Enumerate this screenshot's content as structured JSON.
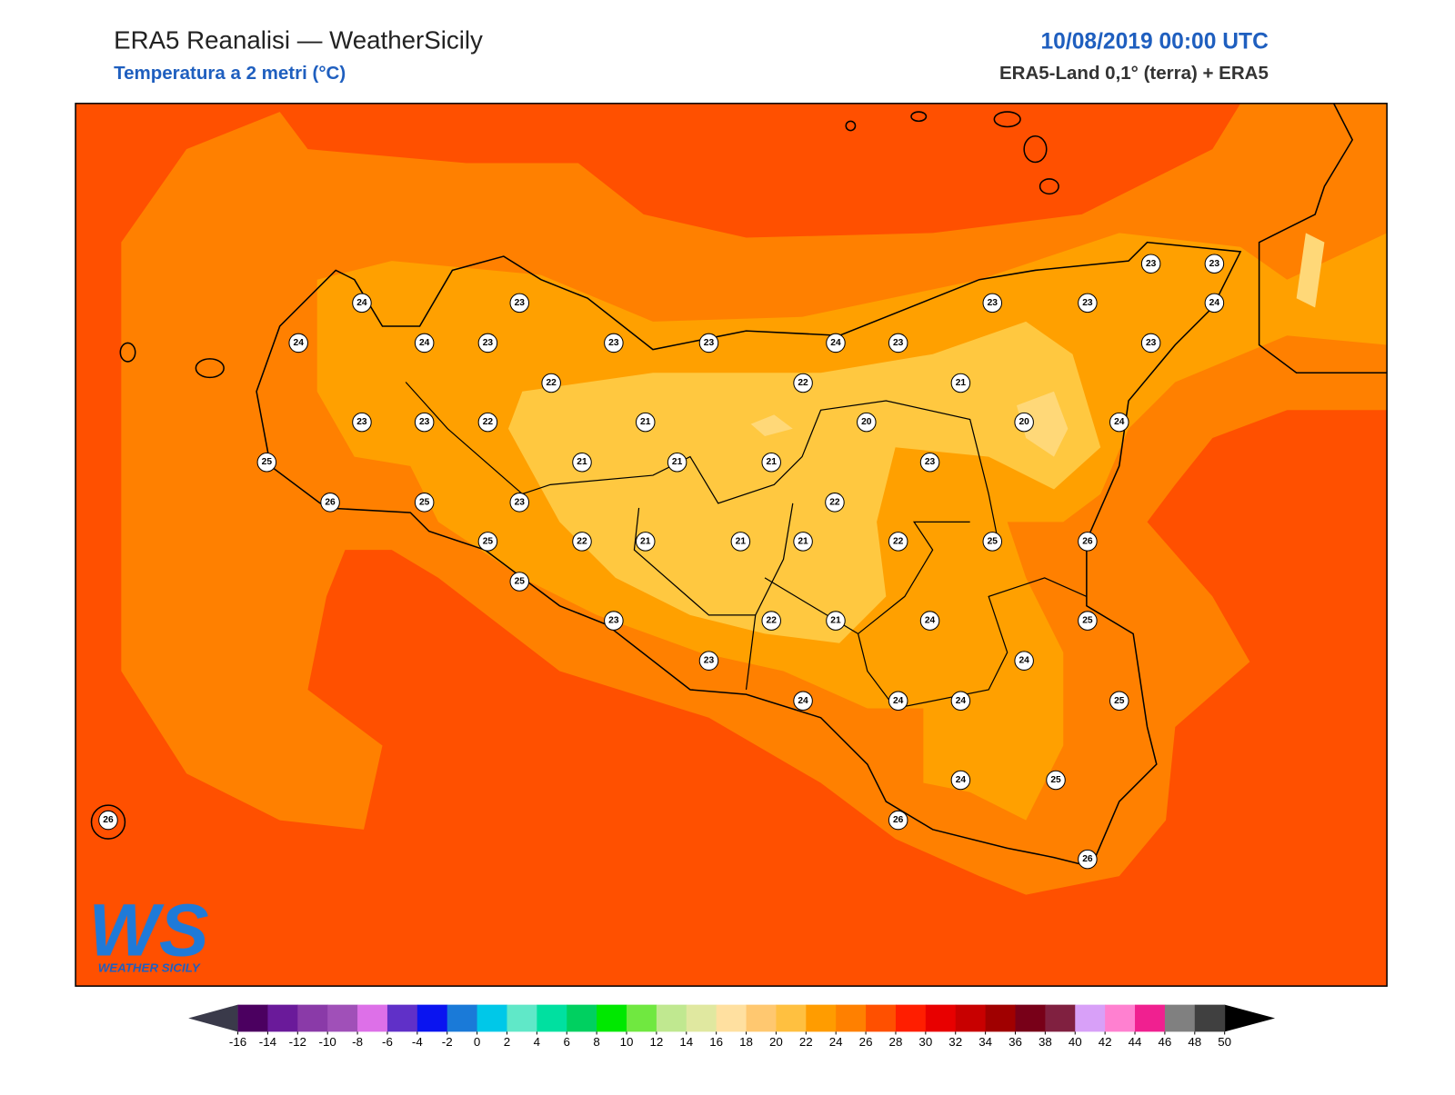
{
  "header": {
    "title": "ERA5 Reanalisi — WeatherSicily",
    "subtitle": "Temperatura a 2 metri (°C)",
    "datetime": "10/08/2019 00:00 UTC",
    "source": "ERA5-Land 0,1° (terra) + ERA5"
  },
  "stations": [
    23,
    23,
    24,
    23,
    23,
    23,
    24,
    24,
    24,
    23,
    23,
    23,
    24,
    23,
    23,
    22,
    22,
    21,
    23,
    23,
    22,
    21,
    20,
    20,
    24,
    25,
    21,
    21,
    21,
    23,
    26,
    25,
    23,
    22,
    25,
    22,
    21,
    21,
    21,
    22,
    25,
    26,
    25,
    23,
    22,
    21,
    24,
    25,
    24,
    23,
    24,
    24,
    24,
    25,
    24,
    25,
    26,
    26,
    26
  ],
  "colorbar": {
    "ticks": [
      -16,
      -14,
      -12,
      -10,
      -8,
      -6,
      -4,
      -2,
      0,
      2,
      4,
      6,
      8,
      10,
      12,
      14,
      16,
      18,
      20,
      22,
      24,
      26,
      28,
      30,
      32,
      34,
      36,
      38,
      40,
      42,
      44,
      46,
      48,
      50
    ],
    "colors": [
      "#4b0060",
      "#6a1a9a",
      "#8a3aa8",
      "#a050b8",
      "#dd70e8",
      "#6030c8",
      "#0a14f0",
      "#1a7ad8",
      "#00c8e8",
      "#60e8c8",
      "#00e0a0",
      "#00d060",
      "#00e800",
      "#70e840",
      "#c0e890",
      "#e0e8a0",
      "#ffe0a0",
      "#ffc870",
      "#ffc040",
      "#ff9c00",
      "#ff8000",
      "#ff5000",
      "#ff1e00",
      "#e80000",
      "#c80000",
      "#a00000",
      "#780018",
      "#802040",
      "#d8a0f8",
      "#ff80d0",
      "#f02090",
      "#808080",
      "#404040"
    ],
    "under_color": "#3a3a4a",
    "over_color": "#000000"
  },
  "logo": {
    "mark": "WS",
    "caption": "WEATHER SICILY"
  }
}
